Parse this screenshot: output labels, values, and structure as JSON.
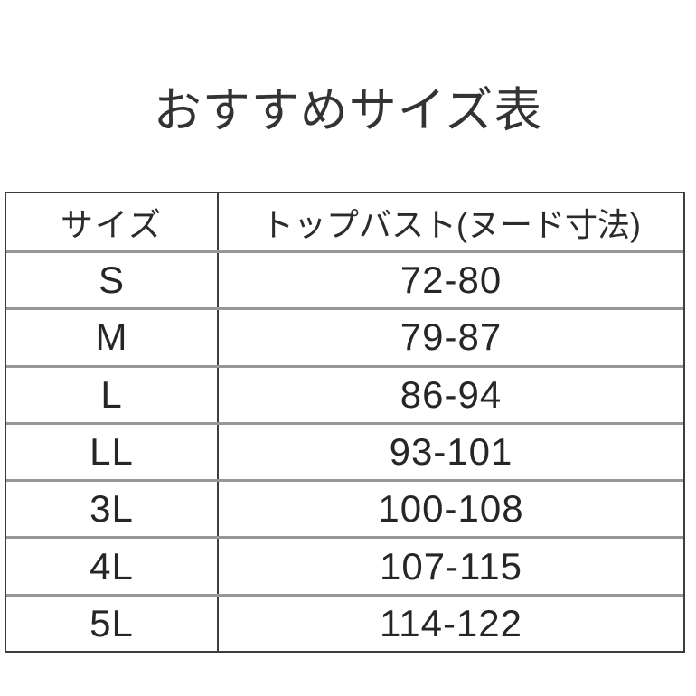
{
  "title": "おすすめサイズ表",
  "table": {
    "header": {
      "size": "サイズ",
      "bust": "トップバスト(ヌード寸法)"
    },
    "rows": [
      {
        "size": "S",
        "bust": "72-80"
      },
      {
        "size": "M",
        "bust": "79-87"
      },
      {
        "size": "L",
        "bust": "86-94"
      },
      {
        "size": "LL",
        "bust": "93-101"
      },
      {
        "size": "3L",
        "bust": "100-108"
      },
      {
        "size": "4L",
        "bust": "107-115"
      },
      {
        "size": "5L",
        "bust": "114-122"
      }
    ]
  },
  "colors": {
    "background": "#ffffff",
    "text": "#262626",
    "title_text": "#333333",
    "border_dark": "#3e3e3e",
    "separator_gray": "#979797"
  },
  "chart_data": {
    "type": "table",
    "title": "おすすめサイズ表",
    "columns": [
      "サイズ",
      "トップバスト(ヌード寸法)"
    ],
    "rows": [
      [
        "S",
        "72-80"
      ],
      [
        "M",
        "79-87"
      ],
      [
        "L",
        "86-94"
      ],
      [
        "LL",
        "93-101"
      ],
      [
        "3L",
        "100-108"
      ],
      [
        "4L",
        "107-115"
      ],
      [
        "5L",
        "114-122"
      ]
    ],
    "categories": [
      "S",
      "M",
      "L",
      "LL",
      "3L",
      "4L",
      "5L"
    ],
    "series": [
      {
        "name": "bust_min",
        "values": [
          72,
          79,
          86,
          93,
          100,
          107,
          114
        ]
      },
      {
        "name": "bust_max",
        "values": [
          80,
          87,
          94,
          101,
          108,
          115,
          122
        ]
      }
    ],
    "legend_position": "none",
    "grid": "row-separators"
  }
}
